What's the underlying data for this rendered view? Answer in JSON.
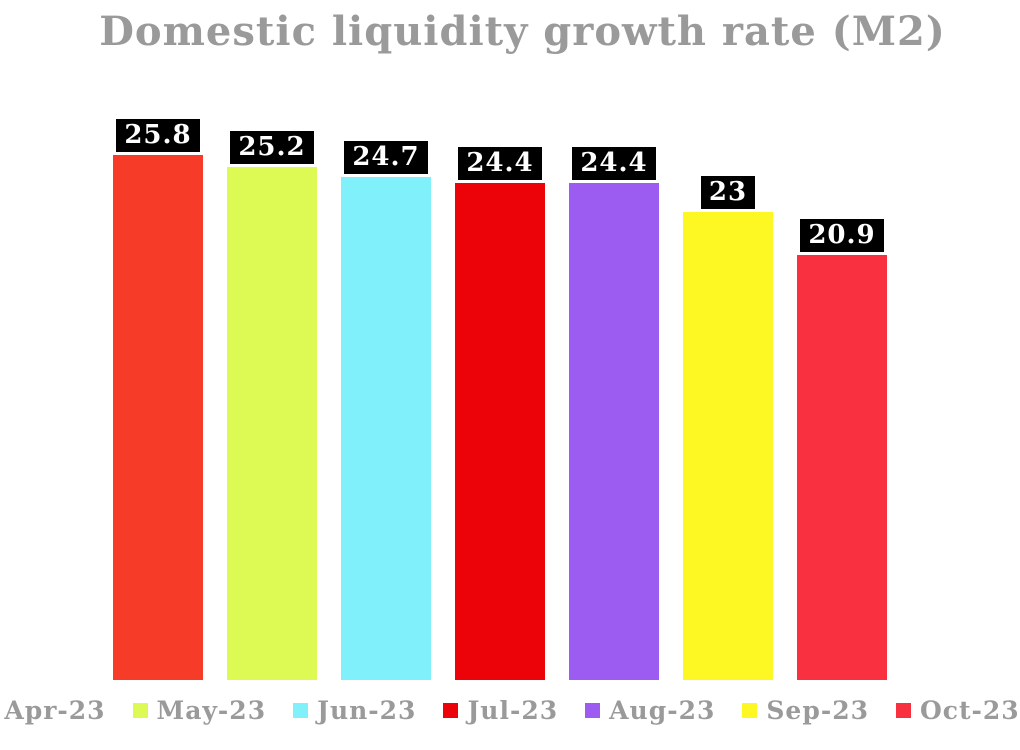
{
  "page": {
    "background_color": "#ffffff"
  },
  "chart_data": {
    "type": "bar",
    "title": "Domestic liquidity growth rate (M2)",
    "title_color": "#9a9a9a",
    "categories": [
      "Apr-23",
      "May-23",
      "Jun-23",
      "Jul-23",
      "Aug-23",
      "Sep-23",
      "Oct-23"
    ],
    "values": [
      25.8,
      25.2,
      24.7,
      24.4,
      24.4,
      23,
      20.9
    ],
    "data_labels": [
      "25.8",
      "25.2",
      "24.7",
      "24.4",
      "24.4",
      "23",
      "20.9"
    ],
    "bar_colors": [
      "#f63b28",
      "#ddf954",
      "#80f1fa",
      "#ec0309",
      "#9c5cf1",
      "#fdf823",
      "#f93040"
    ],
    "xlabel": "",
    "ylabel": "",
    "ylim": [
      0,
      28.5
    ],
    "grid": false,
    "axes_visible": false,
    "data_label_style": {
      "background": "#000000",
      "text_color": "#ffffff"
    },
    "legend": {
      "position": "bottom",
      "entries": [
        "Apr-23",
        "May-23",
        "Jun-23",
        "Jul-23",
        "Aug-23",
        "Sep-23",
        "Oct-23"
      ],
      "text_color": "#9a9a9a"
    }
  }
}
